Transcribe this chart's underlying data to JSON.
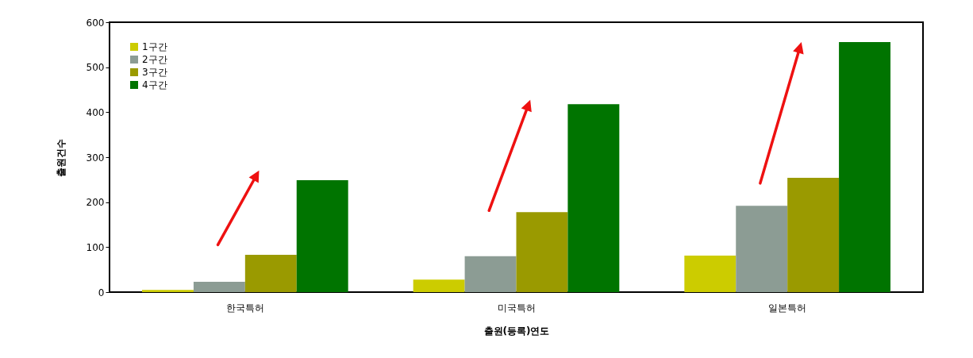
{
  "chart_data": {
    "type": "bar",
    "xlabel": "출원(등록)연도",
    "ylabel": "출원건수",
    "categories": [
      "한국특허",
      "미국특허",
      "일본특허"
    ],
    "series": [
      {
        "name": "1구간",
        "color": "#cccc00",
        "values": [
          5,
          28,
          81
        ]
      },
      {
        "name": "2구간",
        "color": "#8c9c94",
        "values": [
          23,
          80,
          192
        ]
      },
      {
        "name": "3구간",
        "color": "#9a9a00",
        "values": [
          83,
          178,
          254
        ]
      },
      {
        "name": "4구간",
        "color": "#007400",
        "values": [
          249,
          418,
          556
        ]
      }
    ],
    "ylim": [
      0,
      600
    ],
    "yticks": [
      0,
      100,
      200,
      300,
      400,
      500,
      600
    ],
    "grid": false,
    "legend": "top left"
  }
}
